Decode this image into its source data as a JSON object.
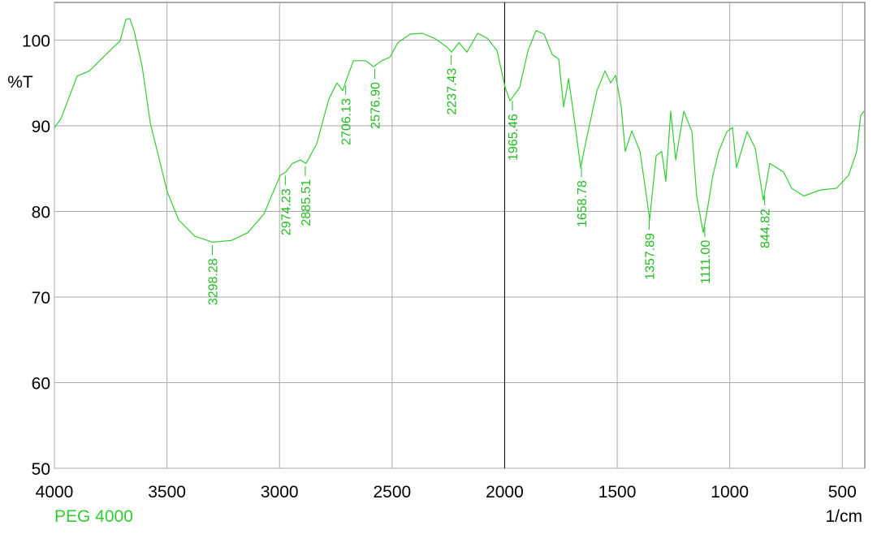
{
  "chart_data": {
    "type": "line",
    "x_label": "1/cm",
    "y_label": "%T",
    "series": [
      {
        "name": "PEG 4000",
        "color": "#33cc33",
        "x": [
          4000,
          3971,
          3899,
          3845,
          3791,
          3737,
          3708,
          3683,
          3665,
          3646,
          3610,
          3574,
          3538,
          3499,
          3448,
          3376,
          3297,
          3214,
          3141,
          3069,
          2997,
          2972,
          2943,
          2907,
          2882,
          2835,
          2781,
          2745,
          2719,
          2701,
          2672,
          2618,
          2582,
          2546,
          2510,
          2474,
          2420,
          2365,
          2311,
          2257,
          2236,
          2203,
          2167,
          2120,
          2077,
          2034,
          1998,
          1976,
          1933,
          1896,
          1861,
          1825,
          1788,
          1760,
          1738,
          1716,
          1688,
          1662,
          1637,
          1590,
          1554,
          1529,
          1507,
          1482,
          1464,
          1435,
          1399,
          1370,
          1356,
          1327,
          1302,
          1284,
          1262,
          1240,
          1204,
          1168,
          1147,
          1118,
          1096,
          1075,
          1049,
          1013,
          988,
          970,
          923,
          887,
          851,
          822,
          761,
          725,
          671,
          598,
          526,
          472,
          436,
          418,
          404
        ],
        "values": [
          89.8,
          90.8,
          95.8,
          96.4,
          97.8,
          99.2,
          99.9,
          102.4,
          102.5,
          101.1,
          96.9,
          90.3,
          86.5,
          82.3,
          79.0,
          77.1,
          76.4,
          76.6,
          77.5,
          79.7,
          84.2,
          84.6,
          85.6,
          86.0,
          85.6,
          87.9,
          93.1,
          95.0,
          94.1,
          95.5,
          97.6,
          97.6,
          96.9,
          97.6,
          98.0,
          99.7,
          100.7,
          100.8,
          100.2,
          99.2,
          98.6,
          99.7,
          98.6,
          100.8,
          100.2,
          98.8,
          94.5,
          92.9,
          94.5,
          98.8,
          101.1,
          100.7,
          98.3,
          97.8,
          92.2,
          95.5,
          90.3,
          85.1,
          88.4,
          94.1,
          96.4,
          95.0,
          95.9,
          92.2,
          87.0,
          89.4,
          87.0,
          81.8,
          79.0,
          86.5,
          87.0,
          83.5,
          91.7,
          86.0,
          91.7,
          89.3,
          81.8,
          77.5,
          80.8,
          84.2,
          87.0,
          89.3,
          89.8,
          85.1,
          89.3,
          87.4,
          81.3,
          85.6,
          84.6,
          82.7,
          81.8,
          82.5,
          82.7,
          84.2,
          87.0,
          91.2,
          91.7
        ]
      }
    ],
    "peaks": [
      {
        "value": 3298.28,
        "label": "3298.28"
      },
      {
        "value": 2974.23,
        "label": "2974.23"
      },
      {
        "value": 2885.51,
        "label": "2885.51"
      },
      {
        "value": 2706.13,
        "label": "2706.13"
      },
      {
        "value": 2576.9,
        "label": "2576.90"
      },
      {
        "value": 2237.43,
        "label": "2237.43"
      },
      {
        "value": 1965.46,
        "label": "1965.46"
      },
      {
        "value": 1658.78,
        "label": "1658.78"
      },
      {
        "value": 1357.89,
        "label": "1357.89"
      },
      {
        "value": 1111.0,
        "label": "1111.00"
      },
      {
        "value": 844.82,
        "label": "844.82"
      }
    ],
    "cursor_x": 2000,
    "xlim": [
      4000,
      400
    ],
    "xticks": [
      4000,
      3500,
      3000,
      2500,
      2000,
      1500,
      1000,
      500
    ],
    "ylim": [
      50,
      104.4
    ],
    "yticks": [
      50,
      60,
      70,
      80,
      90,
      100
    ],
    "grid": true
  }
}
